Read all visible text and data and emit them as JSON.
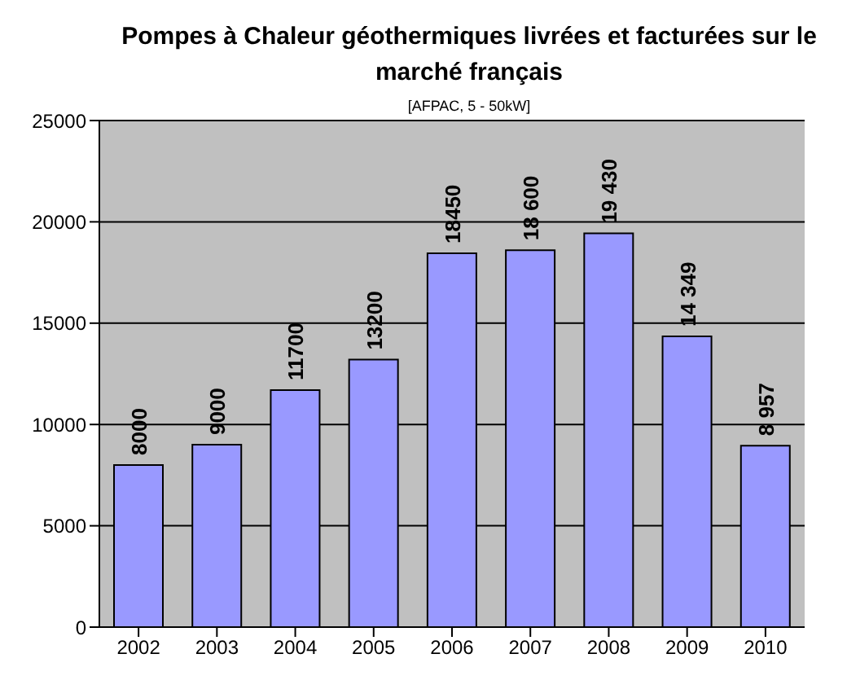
{
  "chart_data": {
    "type": "bar",
    "title": "Pompes à Chaleur géothermiques livrées et facturées sur le marché français",
    "subtitle": "[AFPAC, 5 - 50kW]",
    "categories": [
      "2002",
      "2003",
      "2004",
      "2005",
      "2006",
      "2007",
      "2008",
      "2009",
      "2010"
    ],
    "values": [
      8000,
      9000,
      11700,
      13200,
      18450,
      18600,
      19430,
      14349,
      8957
    ],
    "value_labels": [
      "8000",
      "9000",
      "11700",
      "13200",
      "18450",
      "18 600",
      "19 430",
      "14 349",
      "8 957"
    ],
    "color": "#9999ff",
    "ylim": [
      0,
      25000
    ],
    "yticks": [
      0,
      5000,
      10000,
      15000,
      20000,
      25000
    ],
    "grid": "y",
    "legend": false
  }
}
